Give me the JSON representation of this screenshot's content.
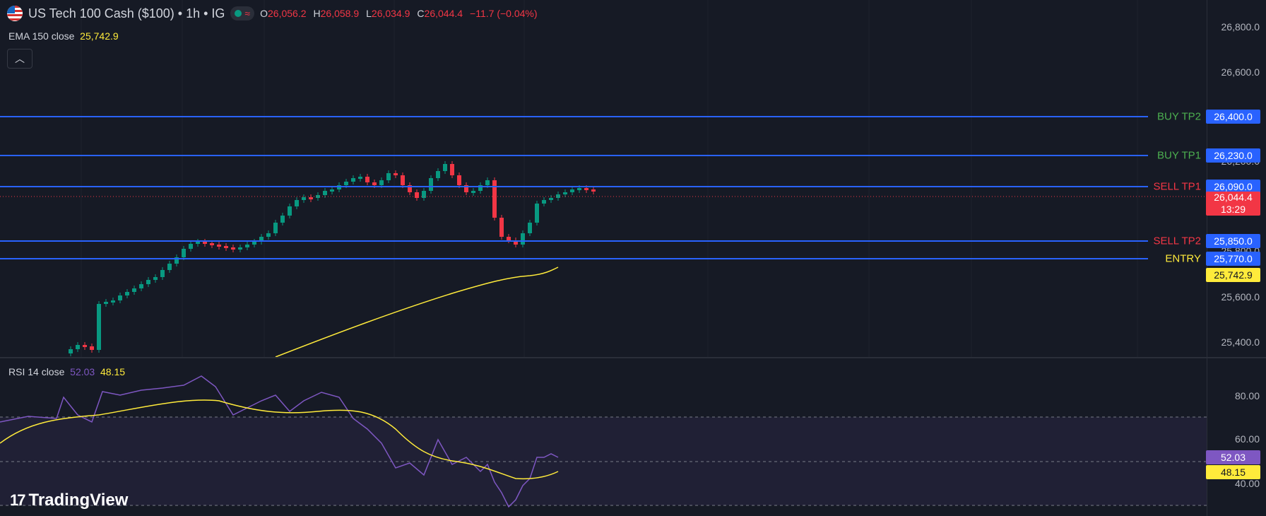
{
  "header": {
    "symbol": "US Tech 100 Cash ($100) • 1h • IG",
    "open_key": "O",
    "open": "26,056.2",
    "high_key": "H",
    "high": "26,058.9",
    "low_key": "L",
    "low": "26,034.9",
    "close_key": "C",
    "close": "26,044.4",
    "change": "−11.7 (−0.04%)",
    "status_icons": [
      "market-open-dot-icon",
      "wave-icon"
    ]
  },
  "ema": {
    "label": "EMA 150 close",
    "value": "25,742.9"
  },
  "collapse_icon": "chevron-up-icon",
  "rsi": {
    "label": "RSI 14 close",
    "value": "52.03",
    "ma_value": "48.15"
  },
  "price_axis": [
    "26,800.0",
    "26,600.0",
    "26,200.0",
    "25,800.0",
    "25,600.0",
    "25,400.0"
  ],
  "rsi_axis": [
    "80.00",
    "60.00",
    "40.00"
  ],
  "levels": [
    {
      "name": "BUY TP2",
      "price": "26,400.0",
      "value": 26400,
      "color": "#4caf50"
    },
    {
      "name": "BUY TP1",
      "price": "26,230.0",
      "value": 26230,
      "color": "#4caf50"
    },
    {
      "name": "SELL TP1",
      "price": "26,090.0",
      "value": 26090,
      "color": "#f23645"
    },
    {
      "name": "SELL TP2",
      "price": "25,850.0",
      "value": 25850,
      "color": "#f23645"
    },
    {
      "name": "ENTRY",
      "price": "25,770.0",
      "value": 25770,
      "color": "#ffeb3b"
    }
  ],
  "current_price": {
    "value": "26,044.4",
    "countdown": "13:29"
  },
  "ema_tag": "25,742.9",
  "rsi_tags": {
    "rsi": "52.03",
    "ma": "48.15"
  },
  "logo": {
    "text": "TradingView",
    "icon": "tradingview-logo-icon"
  },
  "colors": {
    "up": "#089981",
    "down": "#f23645",
    "level": "#2962ff",
    "ema": "#ffeb3b",
    "rsi": "#7e57c2"
  }
}
